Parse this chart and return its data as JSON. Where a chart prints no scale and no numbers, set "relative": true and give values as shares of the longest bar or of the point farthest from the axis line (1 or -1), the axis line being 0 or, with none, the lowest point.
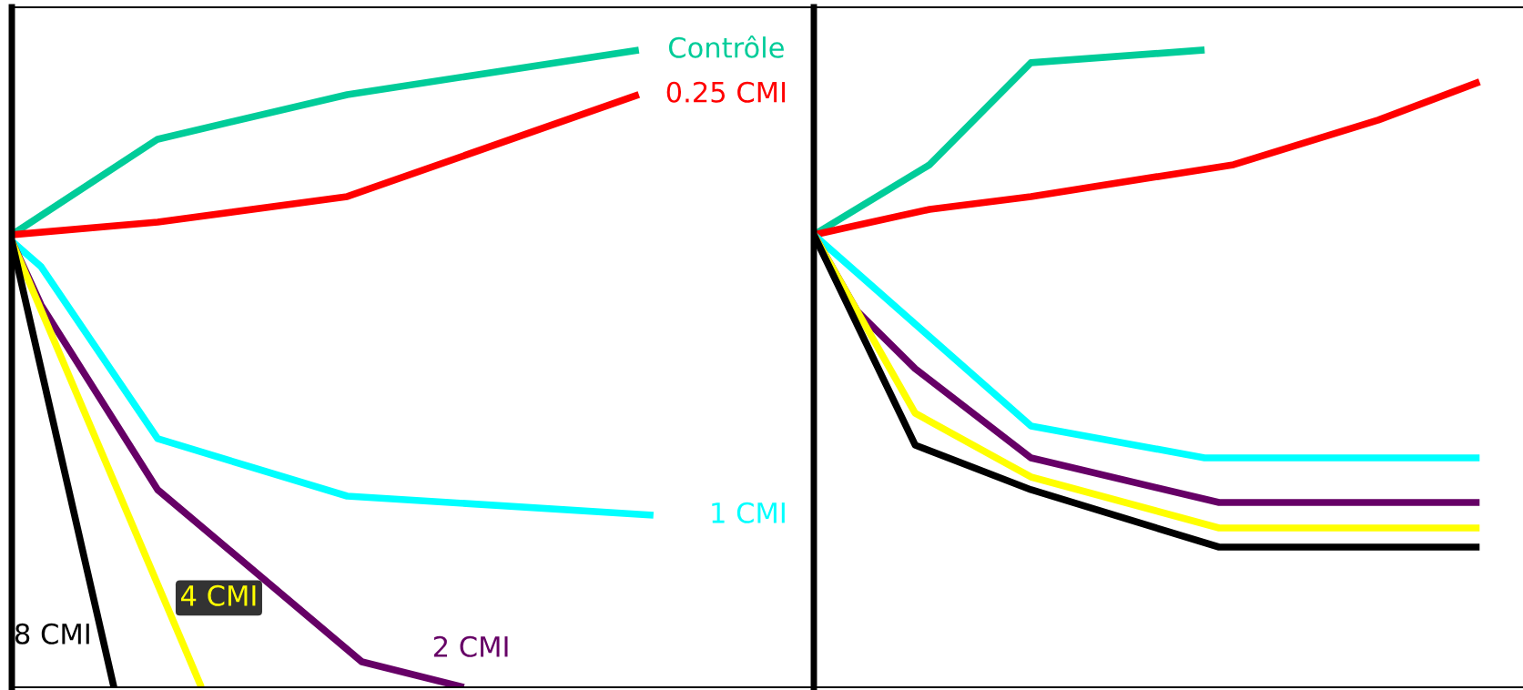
{
  "chart_data": [
    {
      "type": "line",
      "relative": true,
      "legend": false,
      "grid": false,
      "categories": [
        null,
        null,
        null,
        null,
        null,
        null,
        null,
        null,
        null,
        null,
        null,
        null,
        null,
        null,
        null,
        null,
        null,
        null,
        null,
        null,
        null,
        null,
        null,
        null,
        null,
        null,
        null,
        null,
        null,
        null,
        null,
        null,
        null,
        null,
        null,
        null,
        null,
        null,
        null,
        null,
        null,
        null,
        null,
        null,
        null,
        null,
        null,
        null,
        null,
        null,
        null,
        null,
        null,
        null,
        null,
        null
      ],
      "series": [
        {
          "name": "Contrôle",
          "color": "#00cc99",
          "values": [
            0.71,
            null,
            null,
            null,
            null,
            null,
            null,
            null,
            null,
            null,
            0.86,
            null,
            null,
            null,
            null,
            null,
            null,
            null,
            null,
            null,
            null,
            null,
            null,
            0.93,
            null,
            null,
            null,
            null,
            null,
            null,
            null,
            null,
            null,
            null,
            null,
            null,
            null,
            null,
            null,
            null,
            null,
            null,
            null,
            1.0,
            null,
            null,
            null,
            null,
            null,
            null,
            null,
            null,
            null,
            null,
            null,
            null
          ]
        },
        {
          "name": "0.25 CMI",
          "color": "#ff0000",
          "values": [
            0.71,
            null,
            null,
            null,
            null,
            null,
            null,
            null,
            null,
            null,
            0.73,
            null,
            null,
            null,
            null,
            null,
            null,
            null,
            null,
            null,
            null,
            null,
            null,
            0.77,
            null,
            null,
            null,
            null,
            null,
            null,
            null,
            null,
            null,
            null,
            null,
            null,
            null,
            null,
            null,
            null,
            null,
            null,
            null,
            0.93,
            null,
            null,
            null,
            null,
            null,
            null,
            null,
            null,
            null,
            null,
            null,
            null
          ]
        },
        {
          "name": "1 CMI",
          "color": "#00ffff",
          "values": [
            0.7,
            null,
            0.66,
            null,
            null,
            null,
            null,
            null,
            null,
            null,
            0.39,
            null,
            null,
            null,
            null,
            null,
            null,
            null,
            null,
            null,
            null,
            null,
            null,
            0.3,
            null,
            null,
            null,
            null,
            null,
            null,
            null,
            null,
            null,
            null,
            null,
            null,
            null,
            null,
            null,
            null,
            null,
            null,
            null,
            null,
            0.27,
            null,
            null,
            null,
            null,
            null,
            null,
            null,
            null,
            null,
            null,
            null
          ]
        },
        {
          "name": "2 CMI",
          "color": "#660066",
          "values": [
            0.7,
            null,
            0.6,
            null,
            null,
            null,
            null,
            null,
            null,
            null,
            0.31,
            null,
            null,
            null,
            null,
            null,
            null,
            null,
            null,
            null,
            null,
            null,
            null,
            null,
            0.04,
            null,
            null,
            null,
            null,
            null,
            null,
            0.0,
            null,
            null,
            null,
            null,
            null,
            null,
            null,
            null,
            null,
            null,
            null,
            null,
            null,
            null,
            null,
            null,
            null,
            null,
            null,
            null,
            null,
            null,
            null,
            null
          ]
        },
        {
          "name": "4 CMI",
          "color": "#ffff00",
          "values": [
            0.7,
            null,
            null,
            null,
            null,
            null,
            null,
            null,
            null,
            null,
            null,
            null,
            null,
            0.0,
            null,
            null,
            null,
            null,
            null,
            null,
            null,
            null,
            null,
            null,
            null,
            null,
            null,
            null,
            null,
            null,
            null,
            null,
            null,
            null,
            null,
            null,
            null,
            null,
            null,
            null,
            null,
            null,
            null,
            null,
            null,
            null,
            null,
            null,
            null,
            null,
            null,
            null,
            null,
            null,
            null,
            null
          ]
        },
        {
          "name": "8 CMI",
          "color": "#000000",
          "values": [
            0.7,
            null,
            null,
            null,
            null,
            null,
            null,
            0.0,
            null,
            null,
            null,
            null,
            null,
            null,
            null,
            null,
            null,
            null,
            null,
            null,
            null,
            null,
            null,
            null,
            null,
            null,
            null,
            null,
            null,
            null,
            null,
            null,
            null,
            null,
            null,
            null,
            null,
            null,
            null,
            null,
            null,
            null,
            null,
            null,
            null,
            null,
            null,
            null,
            null,
            null,
            null,
            null,
            null,
            null,
            null,
            null
          ]
        }
      ]
    },
    {
      "type": "line",
      "relative": true,
      "legend": false,
      "grid": false,
      "categories": [
        null,
        null,
        null,
        null,
        null,
        null,
        null,
        null,
        null,
        null,
        null,
        null,
        null,
        null,
        null,
        null,
        null,
        null,
        null,
        null,
        null,
        null,
        null,
        null,
        null,
        null,
        null,
        null,
        null,
        null,
        null,
        null,
        null,
        null,
        null,
        null,
        null,
        null,
        null,
        null,
        null,
        null,
        null,
        null,
        null,
        null,
        null,
        null,
        null,
        null
      ],
      "series": [
        {
          "color": "#00cc99",
          "values": [
            0.71,
            null,
            null,
            null,
            null,
            null,
            null,
            null,
            0.82,
            null,
            null,
            null,
            null,
            null,
            null,
            0.98,
            null,
            null,
            null,
            null,
            null,
            null,
            null,
            null,
            null,
            null,
            null,
            1.0,
            null,
            null,
            null,
            null,
            null,
            null,
            null,
            null,
            null,
            null,
            null,
            null,
            null,
            null,
            null,
            null,
            null,
            null,
            null,
            null,
            null,
            null
          ]
        },
        {
          "color": "#ff0000",
          "values": [
            0.71,
            null,
            null,
            null,
            null,
            null,
            null,
            null,
            0.75,
            null,
            null,
            null,
            null,
            null,
            null,
            0.77,
            null,
            null,
            null,
            null,
            null,
            null,
            null,
            null,
            null,
            null,
            null,
            null,
            null,
            0.82,
            null,
            null,
            null,
            null,
            null,
            null,
            null,
            null,
            null,
            0.89,
            null,
            null,
            null,
            null,
            null,
            null,
            0.95,
            null,
            null,
            null
          ]
        },
        {
          "color": "#00ffff",
          "values": [
            0.71,
            null,
            null,
            null,
            null,
            null,
            null,
            null,
            null,
            null,
            null,
            null,
            null,
            null,
            null,
            0.41,
            null,
            null,
            null,
            null,
            null,
            null,
            null,
            null,
            null,
            null,
            null,
            0.36,
            null,
            null,
            null,
            null,
            null,
            null,
            null,
            null,
            null,
            null,
            null,
            null,
            null,
            null,
            null,
            null,
            null,
            null,
            0.36,
            null,
            null,
            null
          ]
        },
        {
          "color": "#660066",
          "values": [
            0.71,
            null,
            null,
            0.59,
            null,
            null,
            null,
            0.5,
            null,
            null,
            null,
            null,
            null,
            null,
            null,
            0.36,
            null,
            null,
            null,
            null,
            null,
            null,
            null,
            null,
            null,
            null,
            null,
            null,
            0.29,
            null,
            null,
            null,
            null,
            null,
            null,
            null,
            null,
            null,
            null,
            null,
            null,
            null,
            null,
            null,
            null,
            null,
            0.29,
            null,
            null,
            null
          ]
        },
        {
          "color": "#ffff00",
          "values": [
            0.71,
            null,
            null,
            null,
            null,
            null,
            null,
            0.43,
            null,
            null,
            null,
            null,
            null,
            null,
            null,
            0.33,
            null,
            null,
            null,
            null,
            null,
            null,
            null,
            null,
            null,
            null,
            null,
            null,
            0.25,
            null,
            null,
            null,
            null,
            null,
            null,
            null,
            null,
            null,
            null,
            null,
            null,
            null,
            null,
            null,
            null,
            null,
            0.25,
            null,
            null,
            null
          ]
        },
        {
          "color": "#000000",
          "values": [
            0.71,
            null,
            null,
            null,
            null,
            null,
            null,
            0.38,
            null,
            null,
            null,
            null,
            null,
            null,
            null,
            0.31,
            null,
            null,
            null,
            null,
            null,
            null,
            null,
            null,
            null,
            null,
            null,
            null,
            0.22,
            null,
            null,
            null,
            null,
            null,
            null,
            null,
            null,
            null,
            null,
            null,
            null,
            null,
            null,
            null,
            null,
            null,
            0.22,
            null,
            null,
            null
          ]
        }
      ]
    }
  ]
}
